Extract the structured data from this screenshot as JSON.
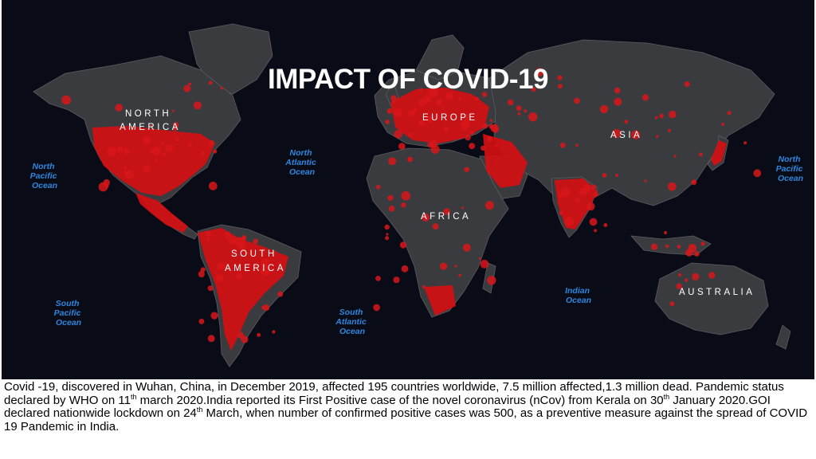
{
  "slide": {
    "title": "IMPACT OF COVID-19"
  },
  "map": {
    "continent_labels": {
      "north_america_line1": "NORTH",
      "north_america_line2": "AMERICA",
      "europe": "EUROPE",
      "asia": "ASIA",
      "africa": "AFRICA",
      "south_america_line1": "SOUTH",
      "south_america_line2": "AMERICA",
      "australia": "AUSTRALIA"
    },
    "ocean_labels": {
      "north_pacific_west": [
        "North",
        "Pacific",
        "Ocean"
      ],
      "north_atlantic": [
        "North",
        "Atlantic",
        "Ocean"
      ],
      "north_pacific_east": [
        "North",
        "Pacific",
        "Ocean"
      ],
      "south_pacific": [
        "South",
        "Pacific",
        "Ocean"
      ],
      "south_atlantic": [
        "South",
        "Atlantic",
        "Ocean"
      ],
      "indian": [
        "Indian",
        "Ocean"
      ]
    },
    "colors": {
      "ocean": "#090c16",
      "land": "#3a3b3f",
      "cases": "#d40f12",
      "ocean_label": "#2e86de"
    }
  },
  "caption": {
    "part1": "Covid -19, discovered in Wuhan, China, in December 2019, affected 195 countries worldwide, 7.5 million affected,1.3 million dead. Pandemic status declared by WHO on 11",
    "sup1": "th",
    "part2": " march 2020.India reported its First Positive case of the novel coronavirus (nCov) from Kerala on 30",
    "sup2": "th",
    "part3": " January 2020.GOI declared nationwide lockdown on 24",
    "sup3": "th",
    "part4": " March, when number of confirmed positive cases was 500, as a preventive measure against the spread of COVID 19 Pandemic in India."
  }
}
